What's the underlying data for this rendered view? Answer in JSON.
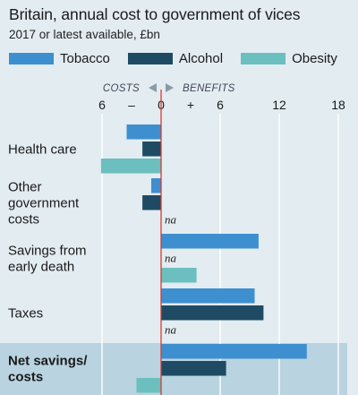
{
  "title": "Britain, annual cost to government of vices",
  "subtitle": "2017 or latest available, £bn",
  "legend": [
    "Tobacco",
    "Alcohol",
    "Obesity"
  ],
  "colors": {
    "Tobacco": "#3e8fcf",
    "Alcohol": "#1f4a63",
    "Obesity": "#6bbfbf",
    "zero_line": "#d8392b",
    "grid": "#ffffff",
    "highlight": "#b9d3e0",
    "arrow": "#8a9aa6"
  },
  "annotation": {
    "left": "COSTS",
    "right": "BENEFITS"
  },
  "chart_data": {
    "type": "bar",
    "orientation": "horizontal",
    "title": "Britain, annual cost to government of vices",
    "subtitle": "2017 or latest available, £bn",
    "xlabel": "",
    "ylabel": "",
    "xlim": [
      -6,
      18
    ],
    "ticks": [
      -6,
      0,
      6,
      12,
      18
    ],
    "tick_labels": [
      "6",
      "–",
      "0",
      "+",
      "6",
      "12",
      "18"
    ],
    "grid": true,
    "legend_position": "top",
    "categories": [
      "Health care",
      "Other government costs",
      "Savings from early death",
      "Taxes",
      "Net savings/ costs"
    ],
    "category_lines": [
      [
        "Health care"
      ],
      [
        "Other",
        "government",
        "costs"
      ],
      [
        "Savings from",
        "early death"
      ],
      [
        "Taxes"
      ],
      [
        "Net savings/",
        "costs"
      ]
    ],
    "highlighted_category": "Net savings/ costs",
    "series": [
      {
        "name": "Tobacco",
        "values": [
          -3.5,
          -1.0,
          9.9,
          9.5,
          14.8
        ]
      },
      {
        "name": "Alcohol",
        "values": [
          -1.9,
          -1.9,
          null,
          10.4,
          6.6
        ]
      },
      {
        "name": "Obesity",
        "values": [
          -6.1,
          null,
          3.6,
          null,
          -2.5
        ]
      }
    ],
    "missing_label": "na"
  }
}
